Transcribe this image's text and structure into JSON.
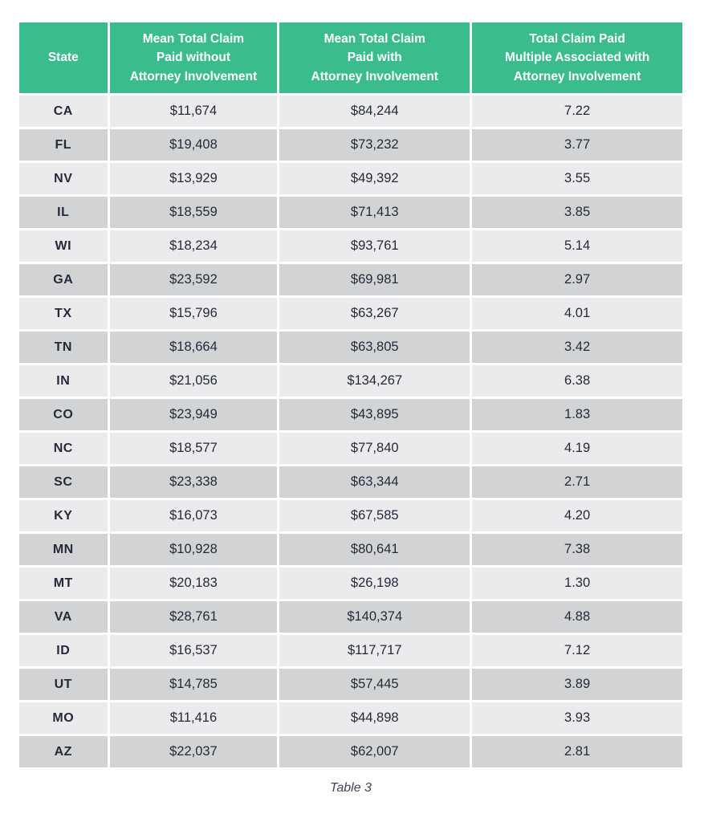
{
  "table": {
    "columns": [
      "State",
      "Mean Total Claim\nPaid without\nAttorney Involvement",
      "Mean Total Claim\nPaid with\nAttorney Involvement",
      "Total Claim Paid\nMultiple Associated with\nAttorney Involvement"
    ],
    "rows": [
      [
        "CA",
        "$11,674",
        "$84,244",
        "7.22"
      ],
      [
        "FL",
        "$19,408",
        "$73,232",
        "3.77"
      ],
      [
        "NV",
        "$13,929",
        "$49,392",
        "3.55"
      ],
      [
        "IL",
        "$18,559",
        "$71,413",
        "3.85"
      ],
      [
        "WI",
        "$18,234",
        "$93,761",
        "5.14"
      ],
      [
        "GA",
        "$23,592",
        "$69,981",
        "2.97"
      ],
      [
        "TX",
        "$15,796",
        "$63,267",
        "4.01"
      ],
      [
        "TN",
        "$18,664",
        "$63,805",
        "3.42"
      ],
      [
        "IN",
        "$21,056",
        "$134,267",
        "6.38"
      ],
      [
        "CO",
        "$23,949",
        "$43,895",
        "1.83"
      ],
      [
        "NC",
        "$18,577",
        "$77,840",
        "4.19"
      ],
      [
        "SC",
        "$23,338",
        "$63,344",
        "2.71"
      ],
      [
        "KY",
        "$16,073",
        "$67,585",
        "4.20"
      ],
      [
        "MN",
        "$10,928",
        "$80,641",
        "7.38"
      ],
      [
        "MT",
        "$20,183",
        "$26,198",
        "1.30"
      ],
      [
        "VA",
        "$28,761",
        "$140,374",
        "4.88"
      ],
      [
        "ID",
        "$16,537",
        "$117,717",
        "7.12"
      ],
      [
        "UT",
        "$14,785",
        "$57,445",
        "3.89"
      ],
      [
        "MO",
        "$11,416",
        "$44,898",
        "3.93"
      ],
      [
        "AZ",
        "$22,037",
        "$62,007",
        "2.81"
      ]
    ],
    "caption": "Table 3"
  },
  "colors": {
    "header_bg": "#3bbc8d",
    "header_text": "#ffffff",
    "row_light": "#ebebed",
    "row_dark": "#d2d3d5",
    "cell_text": "#222a3a"
  }
}
